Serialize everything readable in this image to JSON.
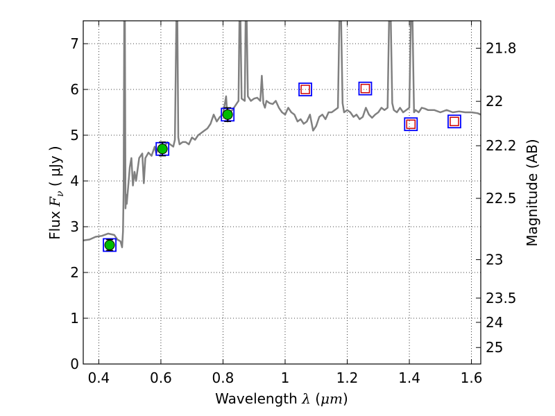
{
  "chart_data": {
    "type": "line",
    "xlabel": "Wavelength",
    "xlabel_symbol": "λ",
    "xlabel_unit": "μm",
    "ylabel": "Flux",
    "ylabel_symbol": "F",
    "ylabel_subscript": "ν",
    "ylabel_unit": "μJy",
    "y2label": "Magnitude (AB)",
    "xlim": [
      0.35,
      1.63
    ],
    "ylim": [
      0,
      7.5
    ],
    "x_ticks": [
      0.4,
      0.6,
      0.8,
      1.0,
      1.2,
      1.4,
      1.6
    ],
    "x_tick_labels": [
      "0.4",
      "0.6",
      "0.8",
      "1",
      "1.2",
      "1.4",
      "1.6"
    ],
    "y_ticks": [
      0,
      1,
      2,
      3,
      4,
      5,
      6,
      7
    ],
    "y_tick_labels": [
      "0",
      "1",
      "2",
      "3",
      "4",
      "5",
      "6",
      "7"
    ],
    "y2_ticks": [
      {
        "label": "21.8",
        "flux": 6.9
      },
      {
        "label": "22",
        "flux": 5.74
      },
      {
        "label": "22.2",
        "flux": 4.77
      },
      {
        "label": "22.5",
        "flux": 3.62
      },
      {
        "label": "23",
        "flux": 2.28
      },
      {
        "label": "23.5",
        "flux": 1.44
      },
      {
        "label": "24",
        "flux": 0.91
      },
      {
        "label": "25",
        "flux": 0.36
      }
    ],
    "grid": true,
    "colors": {
      "spectrum": "#808080",
      "model_marker": "#0000ff",
      "upper_limit_marker": "#cc0000",
      "detection_marker": "#00bb00"
    },
    "series": [
      {
        "kind": "spectrum",
        "x": [
          0.35,
          0.37,
          0.39,
          0.41,
          0.43,
          0.45,
          0.46,
          0.47,
          0.475,
          0.478,
          0.48,
          0.482,
          0.484,
          0.486,
          0.488,
          0.49,
          0.5,
          0.505,
          0.51,
          0.515,
          0.52,
          0.53,
          0.54,
          0.545,
          0.55,
          0.56,
          0.57,
          0.58,
          0.585,
          0.59,
          0.6,
          0.61,
          0.62,
          0.63,
          0.64,
          0.645,
          0.65,
          0.653,
          0.656,
          0.66,
          0.67,
          0.68,
          0.69,
          0.7,
          0.71,
          0.72,
          0.73,
          0.74,
          0.75,
          0.76,
          0.77,
          0.78,
          0.79,
          0.8,
          0.81,
          0.815,
          0.82,
          0.83,
          0.84,
          0.85,
          0.853,
          0.856,
          0.86,
          0.87,
          0.873,
          0.876,
          0.88,
          0.89,
          0.9,
          0.91,
          0.92,
          0.925,
          0.93,
          0.935,
          0.94,
          0.95,
          0.96,
          0.97,
          0.98,
          0.99,
          1.0,
          1.01,
          1.02,
          1.03,
          1.04,
          1.05,
          1.06,
          1.07,
          1.08,
          1.09,
          1.1,
          1.11,
          1.12,
          1.13,
          1.14,
          1.15,
          1.16,
          1.17,
          1.175,
          1.18,
          1.185,
          1.19,
          1.2,
          1.21,
          1.22,
          1.23,
          1.24,
          1.25,
          1.26,
          1.27,
          1.28,
          1.29,
          1.3,
          1.31,
          1.32,
          1.33,
          1.335,
          1.34,
          1.345,
          1.35,
          1.36,
          1.37,
          1.38,
          1.39,
          1.4,
          1.405,
          1.41,
          1.415,
          1.42,
          1.43,
          1.44,
          1.45,
          1.46,
          1.48,
          1.5,
          1.52,
          1.54,
          1.56,
          1.58,
          1.6,
          1.62,
          1.63
        ],
        "y": [
          2.7,
          2.72,
          2.78,
          2.8,
          2.85,
          2.82,
          2.72,
          2.68,
          2.55,
          2.9,
          3.8,
          7.6,
          7.6,
          3.4,
          3.7,
          3.5,
          4.3,
          4.5,
          3.9,
          4.2,
          4.0,
          4.5,
          4.6,
          3.95,
          4.5,
          4.62,
          4.55,
          4.75,
          4.6,
          4.7,
          4.7,
          4.72,
          4.85,
          4.8,
          4.75,
          4.9,
          7.6,
          7.6,
          4.95,
          4.8,
          4.85,
          4.85,
          4.8,
          4.95,
          4.9,
          5.0,
          5.05,
          5.1,
          5.15,
          5.25,
          5.45,
          5.3,
          5.4,
          5.45,
          5.85,
          5.3,
          5.5,
          5.55,
          5.65,
          5.75,
          7.6,
          7.6,
          5.8,
          5.75,
          7.6,
          7.6,
          5.85,
          5.75,
          5.8,
          5.82,
          5.75,
          6.3,
          5.7,
          5.6,
          5.75,
          5.7,
          5.68,
          5.75,
          5.6,
          5.5,
          5.45,
          5.6,
          5.5,
          5.45,
          5.3,
          5.35,
          5.25,
          5.3,
          5.45,
          5.1,
          5.2,
          5.4,
          5.45,
          5.35,
          5.5,
          5.5,
          5.55,
          5.6,
          7.6,
          7.6,
          5.7,
          5.5,
          5.55,
          5.5,
          5.4,
          5.45,
          5.35,
          5.4,
          5.6,
          5.45,
          5.38,
          5.45,
          5.5,
          5.6,
          5.55,
          5.6,
          7.6,
          7.6,
          5.7,
          5.55,
          5.5,
          5.6,
          5.5,
          5.55,
          5.6,
          7.6,
          7.6,
          5.5,
          5.55,
          5.5,
          5.6,
          5.58,
          5.55,
          5.55,
          5.5,
          5.55,
          5.5,
          5.52,
          5.5,
          5.5,
          5.48,
          5.45
        ]
      },
      {
        "kind": "model_photometry",
        "marker": "open-square",
        "x": [
          0.435,
          0.605,
          0.815,
          1.065,
          1.258,
          1.405,
          1.545
        ],
        "y": [
          2.6,
          4.7,
          5.45,
          6.0,
          6.02,
          5.24,
          5.3
        ]
      },
      {
        "kind": "upper_limits",
        "marker": "open-square",
        "x": [
          1.065,
          1.258,
          1.405,
          1.545
        ],
        "y": [
          6.0,
          6.02,
          5.24,
          5.3
        ]
      },
      {
        "kind": "detections",
        "marker": "filled-circle",
        "x": [
          0.435,
          0.605,
          0.815
        ],
        "y": [
          2.6,
          4.7,
          5.45
        ],
        "yerr": [
          0.12,
          0.15,
          0.15
        ]
      }
    ]
  }
}
